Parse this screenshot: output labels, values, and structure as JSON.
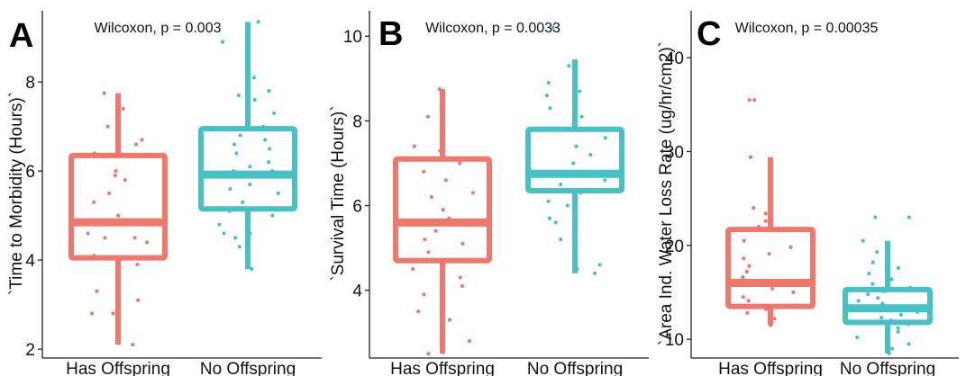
{
  "chart_data": [
    {
      "type": "box",
      "panel_label": "A",
      "annotation": "Wilcoxon, p = 0.003",
      "ylabel": "`Time to Morbidity (Hours)`",
      "categories": [
        "Has Offspring",
        "No Offspring"
      ],
      "colors": [
        "#ef776b",
        "#46c1c4"
      ],
      "yticks": [
        "2",
        "4",
        "6",
        "8"
      ],
      "ylim": [
        1.8,
        9.6
      ],
      "boxes": [
        {
          "category": "Has Offspring",
          "whisker_low": 2.1,
          "q1": 4.05,
          "median": 4.85,
          "q3": 6.35,
          "whisker_high": 7.75
        },
        {
          "category": "No Offspring",
          "whisker_low": 3.8,
          "q1": 5.15,
          "median": 5.92,
          "q3": 6.95,
          "whisker_high": 9.35
        }
      ],
      "points": [
        [
          2.1,
          2.8,
          2.8,
          3.1,
          3.3,
          3.9,
          4.1,
          4.4,
          4.5,
          4.5,
          4.6,
          4.8,
          4.9,
          5.0,
          5.3,
          5.5,
          5.8,
          5.9,
          6.0,
          6.4,
          6.6,
          6.7,
          7.0,
          7.3,
          7.4,
          7.75
        ],
        [
          3.8,
          4.3,
          4.5,
          4.6,
          4.6,
          4.8,
          5.0,
          5.1,
          5.3,
          5.5,
          5.6,
          5.7,
          5.9,
          6.0,
          6.0,
          6.1,
          6.2,
          6.4,
          6.5,
          6.6,
          6.7,
          6.8,
          7.0,
          7.3,
          7.4,
          7.6,
          7.7,
          7.8,
          8.1,
          8.9,
          9.35
        ]
      ]
    },
    {
      "type": "box",
      "panel_label": "B",
      "annotation": "Wilcoxon, p = 0.0033",
      "ylabel": "`Survival Time (Hours)`",
      "categories": [
        "Has Offspring",
        "No Offspring"
      ],
      "colors": [
        "#ef776b",
        "#46c1c4"
      ],
      "yticks": [
        "4",
        "6",
        "8",
        "10"
      ],
      "ylim": [
        2.4,
        10.6
      ],
      "boxes": [
        {
          "category": "Has Offspring",
          "whisker_low": 2.5,
          "q1": 4.7,
          "median": 5.6,
          "q3": 7.1,
          "whisker_high": 8.75
        },
        {
          "category": "No Offspring",
          "whisker_low": 4.4,
          "q1": 6.35,
          "median": 6.75,
          "q3": 7.8,
          "whisker_high": 9.45
        }
      ],
      "points": [
        [
          2.5,
          2.8,
          3.3,
          3.5,
          3.9,
          4.1,
          4.3,
          4.5,
          4.7,
          4.9,
          5.1,
          5.2,
          5.4,
          5.7,
          5.9,
          6.2,
          6.3,
          6.6,
          6.8,
          7.0,
          7.3,
          7.4,
          8.1,
          8.75
        ],
        [
          4.4,
          4.5,
          4.6,
          5.2,
          5.6,
          5.7,
          6.0,
          6.1,
          6.3,
          6.5,
          6.6,
          6.7,
          6.8,
          7.0,
          7.2,
          7.4,
          7.6,
          8.1,
          8.3,
          8.6,
          8.7,
          8.9,
          9.3,
          10.2
        ]
      ]
    },
    {
      "type": "box",
      "panel_label": "C",
      "annotation": "Wilcoxon, p = 0.00035",
      "ylabel": "`Area Ind. Water Loss Rate (ug/hr/cm2)`",
      "categories": [
        "Has Offspring",
        "No Offspring"
      ],
      "colors": [
        "#ef776b",
        "#46c1c4"
      ],
      "yticks": [
        "10",
        "20",
        "30",
        "40"
      ],
      "ylim": [
        8.0,
        45.0
      ],
      "boxes": [
        {
          "category": "Has Offspring",
          "whisker_low": 11.5,
          "q1": 13.5,
          "median": 16.0,
          "q3": 21.7,
          "whisker_high": 29.4
        },
        {
          "category": "No Offspring",
          "whisker_low": 8.5,
          "q1": 11.8,
          "median": 13.3,
          "q3": 15.3,
          "whisker_high": 20.5
        }
      ],
      "points": [
        [
          11.5,
          12.2,
          12.8,
          13.2,
          13.6,
          14.1,
          14.5,
          15.0,
          15.4,
          15.8,
          16.2,
          16.6,
          17.2,
          17.8,
          18.6,
          19.1,
          19.8,
          20.5,
          22.0,
          22.6,
          23.4,
          24.0,
          29.4,
          35.5,
          35.5
        ],
        [
          8.5,
          9.0,
          9.5,
          10.2,
          10.8,
          11.2,
          11.6,
          12.0,
          12.3,
          12.6,
          12.9,
          13.2,
          13.5,
          13.8,
          14.1,
          14.4,
          14.8,
          15.1,
          15.5,
          15.9,
          16.4,
          17.0,
          17.6,
          18.2,
          19.3,
          20.5,
          23.0,
          23.0
        ]
      ]
    }
  ]
}
